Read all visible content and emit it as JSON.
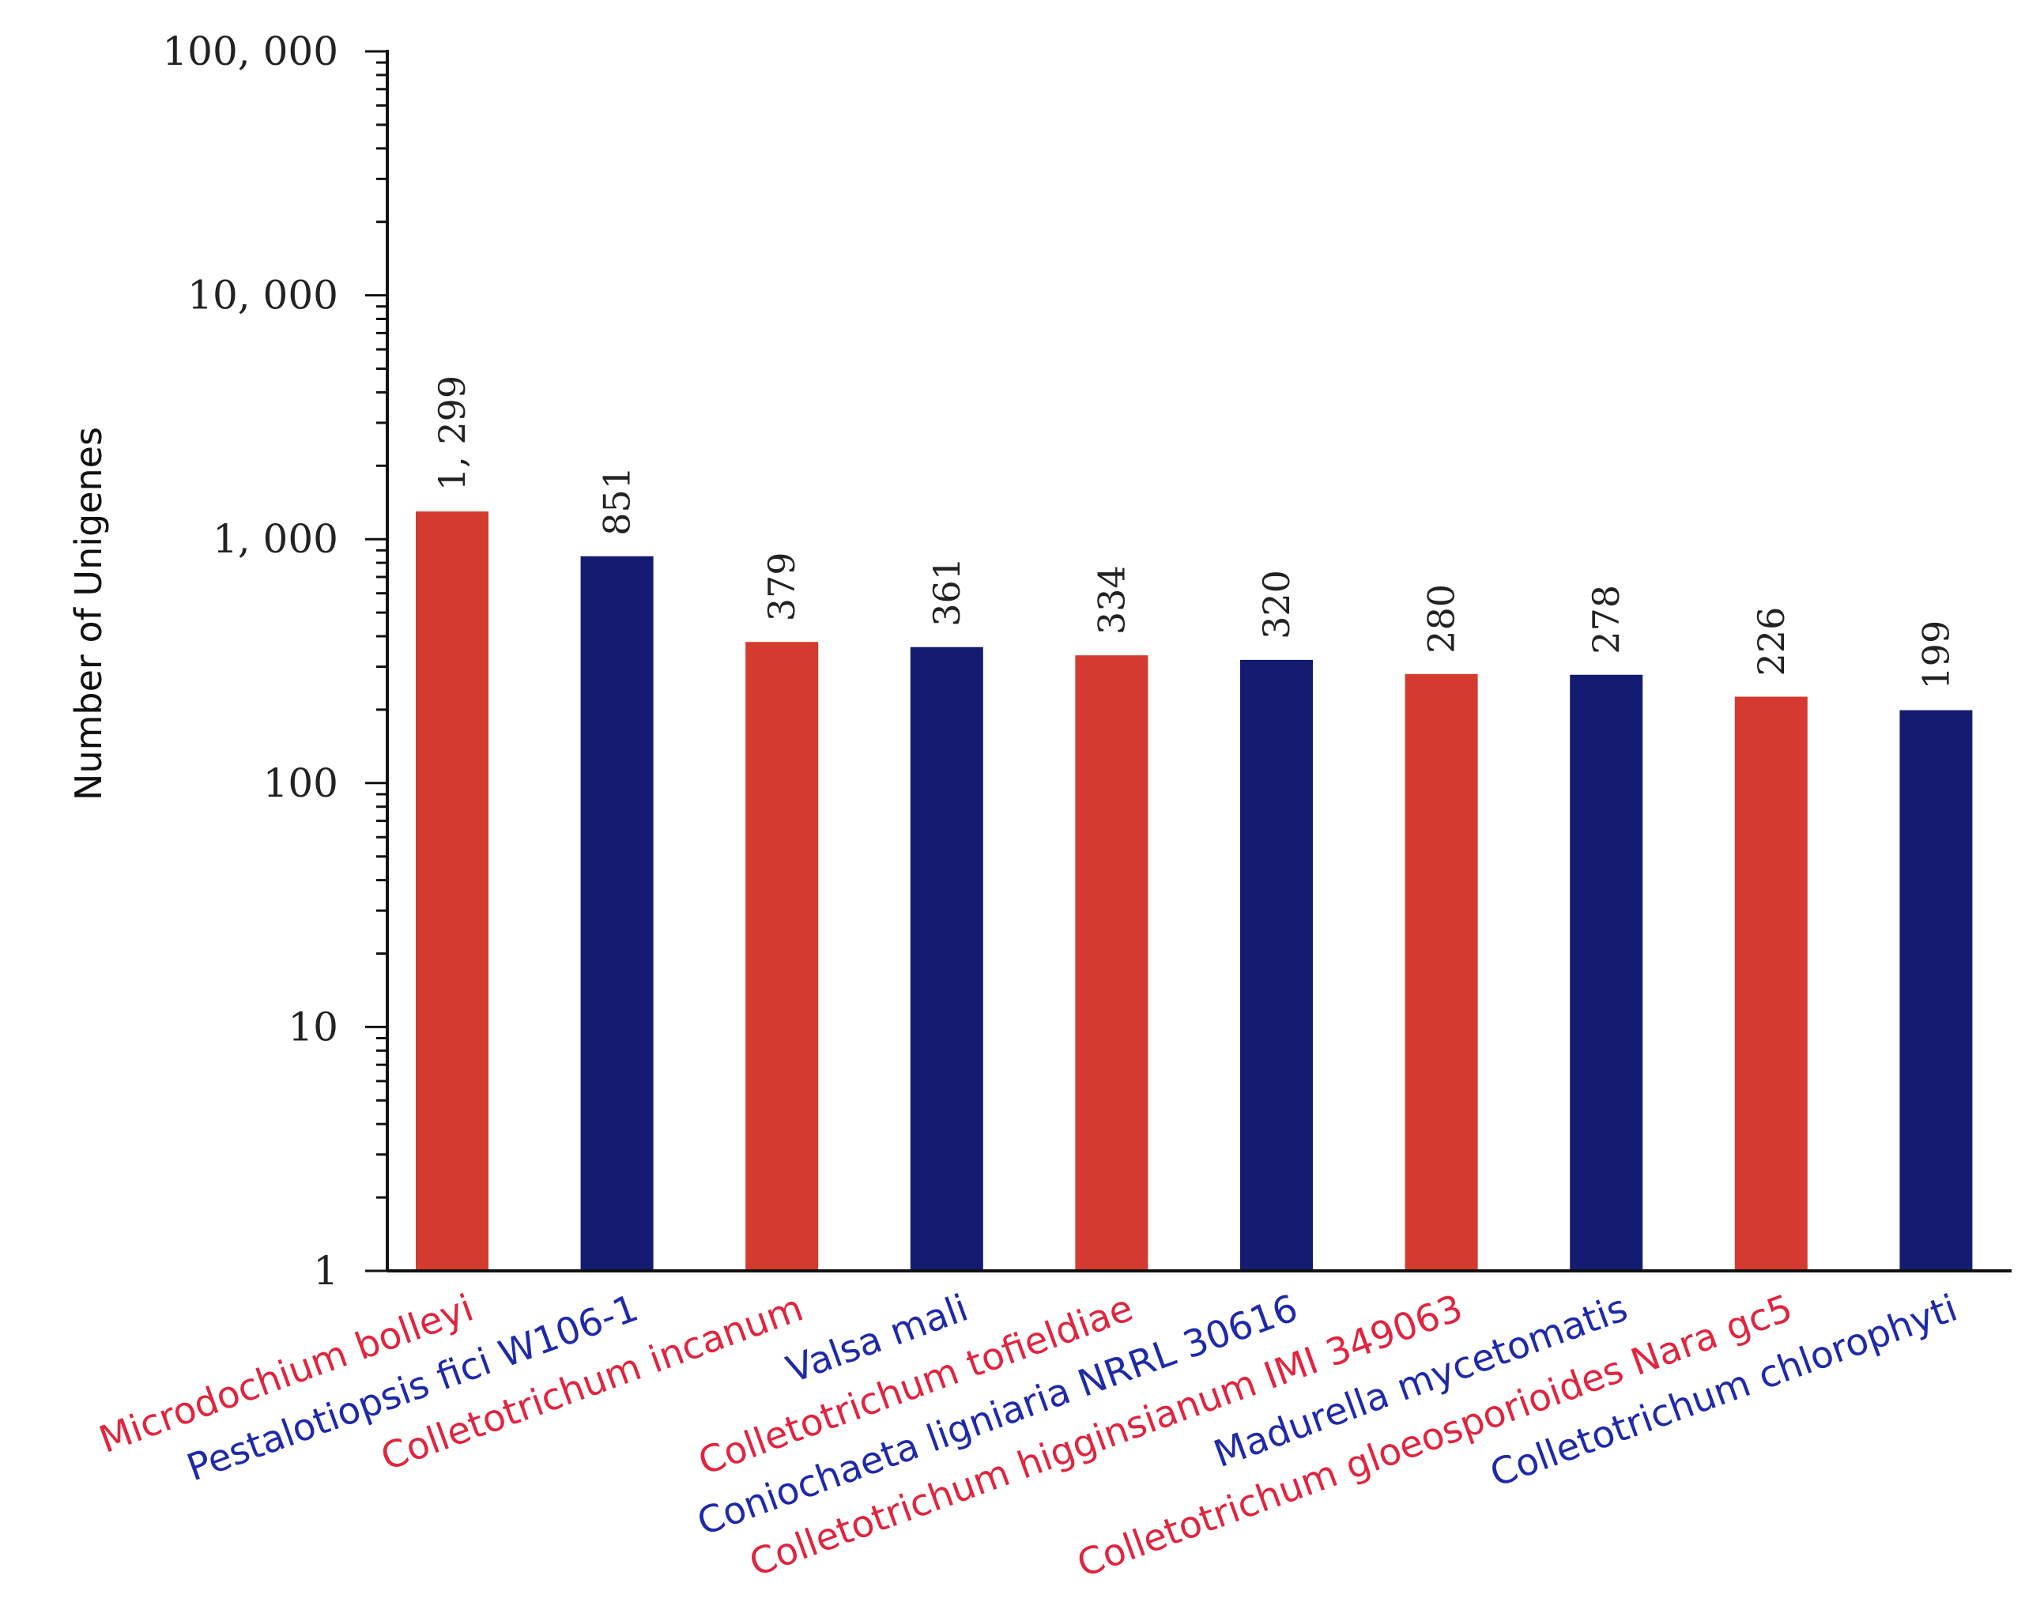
{
  "colors": {
    "red_bar": "#d43a2f",
    "blue_bar": "#131c70",
    "red_label": "#e0253f",
    "blue_label": "#1f2aa8",
    "axis": "#111111"
  },
  "chart_data": {
    "type": "bar",
    "title": "",
    "xlabel": "",
    "ylabel": "Number of Unigenes",
    "yscale": "log",
    "ylim": [
      1,
      100000
    ],
    "yticks": [
      {
        "value": 1,
        "label": "1"
      },
      {
        "value": 10,
        "label": "10"
      },
      {
        "value": 100,
        "label": "100"
      },
      {
        "value": 1000,
        "label": "1, 000"
      },
      {
        "value": 10000,
        "label": "10, 000"
      },
      {
        "value": 100000,
        "label": "100, 000"
      }
    ],
    "categories": [
      "Microdochium bolleyi",
      "Pestalotiopsis fici W106-1",
      "Colletotrichum incanum",
      "Valsa mali",
      "Colletotrichum tofieldiae",
      "Coniochaeta ligniaria NRRL 30616",
      "Colletotrichum higginsianum IMI 349063",
      "Madurella mycetomatis",
      "Colletotrichum gloeosporioides Nara gc5",
      "Colletotrichum chlorophyti"
    ],
    "values": [
      1299,
      851,
      379,
      361,
      334,
      320,
      280,
      278,
      226,
      199
    ],
    "value_labels": [
      "1, 299",
      "851",
      "379",
      "361",
      "334",
      "320",
      "280",
      "278",
      "226",
      "199"
    ],
    "bar_colors": [
      "red",
      "blue",
      "red",
      "blue",
      "red",
      "blue",
      "red",
      "blue",
      "red",
      "blue"
    ],
    "grid": false,
    "legend": "none"
  }
}
